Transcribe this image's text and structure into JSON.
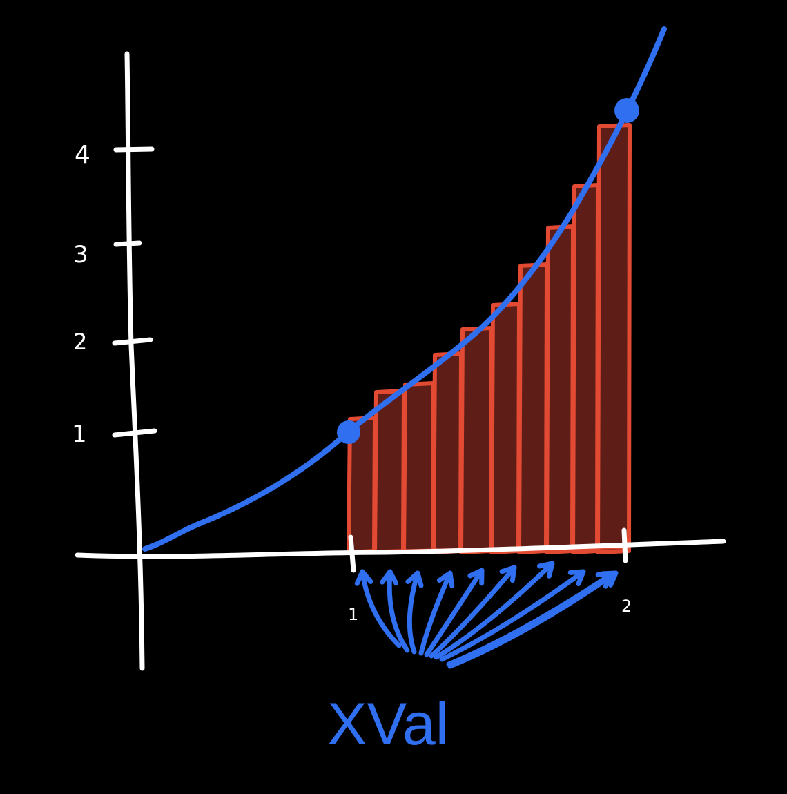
{
  "diagram": {
    "y_ticks": [
      "1",
      "2",
      "3",
      "4"
    ],
    "x_ticks": [
      "1",
      "2"
    ],
    "arrow_label": "XVal",
    "colors": {
      "background": "#000000",
      "axes": "#ffffff",
      "curve": "#2f6ff0",
      "bar_outline": "#e24a33",
      "bar_fill": "#5e1e17",
      "annotation": "#2f6ff0"
    },
    "rectangle_count": 10
  }
}
